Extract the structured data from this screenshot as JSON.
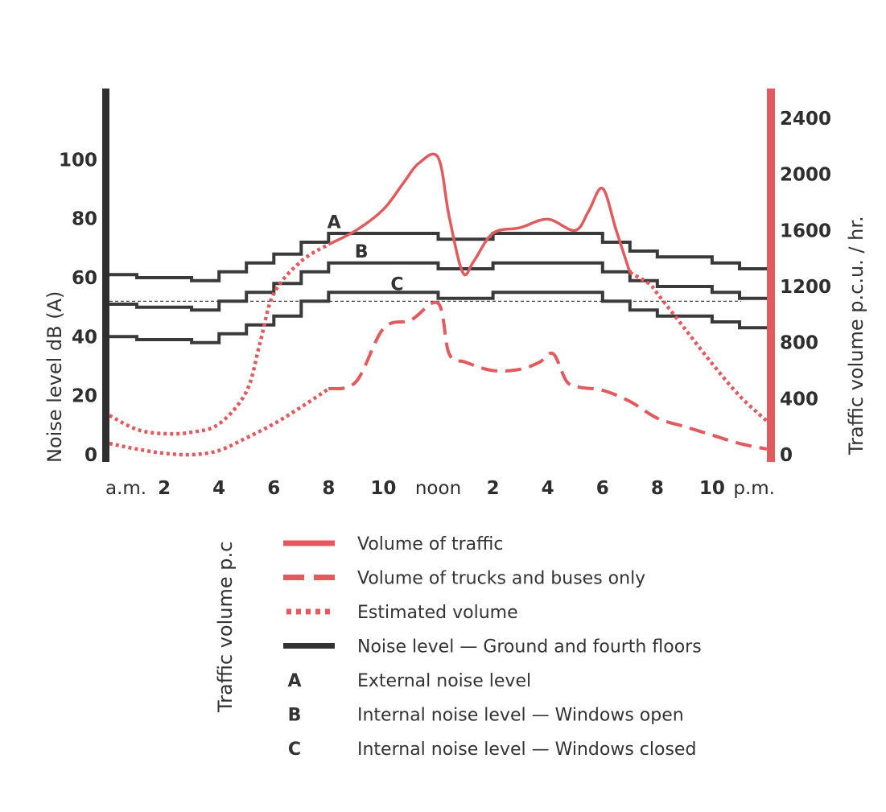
{
  "chart_data": {
    "type": "line",
    "left_axis": {
      "label": "Noise level dB (A)",
      "range": [
        0,
        120
      ],
      "ticks": [
        0,
        20,
        40,
        60,
        80,
        100
      ]
    },
    "right_axis": {
      "label": "Traffic volume p.c.u. / hr.",
      "range": [
        0,
        2400
      ],
      "ticks": [
        0,
        400,
        800,
        1200,
        1600,
        2000,
        2400
      ],
      "color": "#e05a5e"
    },
    "x_axis": {
      "range_hours": [
        0,
        24
      ],
      "ticks": [
        {
          "hour": 0,
          "text": "a.m."
        },
        {
          "hour": 2,
          "label": "2"
        },
        {
          "hour": 4,
          "label": "4"
        },
        {
          "hour": 6,
          "label": "6"
        },
        {
          "hour": 8,
          "label": "8"
        },
        {
          "hour": 10,
          "label": "10"
        },
        {
          "hour": 12,
          "text": "noon"
        },
        {
          "hour": 14,
          "label": "2"
        },
        {
          "hour": 16,
          "label": "4"
        },
        {
          "hour": 18,
          "label": "6"
        },
        {
          "hour": 20,
          "label": "8"
        },
        {
          "hour": 22,
          "label": "10"
        },
        {
          "hour": 24,
          "text": "p.m."
        }
      ]
    },
    "series": [
      {
        "name": "Volume of traffic",
        "axis": "right",
        "style": "solid",
        "color": "#e05a5e",
        "points": [
          [
            8,
            1500
          ],
          [
            9,
            1600
          ],
          [
            10,
            1750
          ],
          [
            10.7,
            1930
          ],
          [
            11.3,
            2080
          ],
          [
            12,
            2120
          ],
          [
            12.4,
            1700
          ],
          [
            12.9,
            1300
          ],
          [
            13.3,
            1380
          ],
          [
            14,
            1580
          ],
          [
            15,
            1620
          ],
          [
            16,
            1680
          ],
          [
            17,
            1600
          ],
          [
            17.5,
            1740
          ],
          [
            18,
            1900
          ],
          [
            18.5,
            1600
          ],
          [
            19,
            1300
          ]
        ]
      },
      {
        "name": "Volume of trucks and buses only",
        "axis": "right",
        "style": "dashed",
        "color": "#e05a5e",
        "points": [
          [
            8,
            470
          ],
          [
            9,
            520
          ],
          [
            10,
            900
          ],
          [
            11,
            960
          ],
          [
            12,
            1080
          ],
          [
            12.4,
            720
          ],
          [
            13,
            660
          ],
          [
            14,
            600
          ],
          [
            15,
            610
          ],
          [
            15.7,
            660
          ],
          [
            16.2,
            720
          ],
          [
            16.7,
            520
          ],
          [
            17.2,
            480
          ],
          [
            18,
            460
          ],
          [
            19,
            380
          ],
          [
            20,
            260
          ],
          [
            21,
            200
          ],
          [
            22,
            140
          ],
          [
            23,
            80
          ],
          [
            24,
            40
          ]
        ]
      },
      {
        "name": "Estimated volume",
        "axis": "right",
        "style": "dotted",
        "color": "#e05a5e",
        "points": [
          [
            0,
            280
          ],
          [
            1,
            180
          ],
          [
            2,
            150
          ],
          [
            3,
            160
          ],
          [
            4,
            220
          ],
          [
            5,
            450
          ],
          [
            5.5,
            800
          ],
          [
            6,
            1150
          ],
          [
            7,
            1380
          ],
          [
            8,
            1500
          ]
        ]
      },
      {
        "name": "Estimated volume",
        "axis": "right",
        "style": "dotted",
        "color": "#e05a5e",
        "points": [
          [
            0,
            80
          ],
          [
            1,
            40
          ],
          [
            2,
            10
          ],
          [
            3,
            0
          ],
          [
            4,
            30
          ],
          [
            5,
            120
          ],
          [
            6,
            220
          ],
          [
            7,
            340
          ],
          [
            8,
            470
          ]
        ]
      },
      {
        "name": "Estimated volume",
        "axis": "right",
        "style": "dotted",
        "color": "#e05a5e",
        "points": [
          [
            19,
            1300
          ],
          [
            19.7,
            1220
          ],
          [
            20,
            1150
          ],
          [
            21,
            900
          ],
          [
            22,
            650
          ],
          [
            23,
            420
          ],
          [
            24,
            240
          ]
        ]
      },
      {
        "name": "A",
        "axis": "left",
        "style": "step",
        "color": "#3a3a3a",
        "steps": [
          [
            0,
            61
          ],
          [
            1,
            60
          ],
          [
            3,
            59
          ],
          [
            4,
            62
          ],
          [
            5,
            65
          ],
          [
            6,
            68
          ],
          [
            7,
            72
          ],
          [
            8,
            75
          ],
          [
            12,
            73
          ],
          [
            14,
            75
          ],
          [
            18,
            72
          ],
          [
            19,
            69
          ],
          [
            20,
            67
          ],
          [
            22,
            65
          ],
          [
            23,
            63
          ],
          [
            24,
            63
          ]
        ]
      },
      {
        "name": "B",
        "axis": "left",
        "style": "step",
        "color": "#3a3a3a",
        "steps": [
          [
            0,
            51
          ],
          [
            1,
            50
          ],
          [
            3,
            49
          ],
          [
            4,
            52
          ],
          [
            5,
            55
          ],
          [
            6,
            58
          ],
          [
            7,
            62
          ],
          [
            8,
            65
          ],
          [
            12,
            63
          ],
          [
            14,
            65
          ],
          [
            18,
            62
          ],
          [
            19,
            59
          ],
          [
            20,
            57
          ],
          [
            22,
            55
          ],
          [
            23,
            53
          ],
          [
            24,
            53
          ]
        ]
      },
      {
        "name": "C",
        "axis": "left",
        "style": "step",
        "color": "#3a3a3a",
        "steps": [
          [
            0,
            40
          ],
          [
            1,
            39
          ],
          [
            3,
            38
          ],
          [
            4,
            41
          ],
          [
            5,
            44
          ],
          [
            6,
            47
          ],
          [
            7,
            52
          ],
          [
            8,
            55
          ],
          [
            12,
            53
          ],
          [
            14,
            55
          ],
          [
            18,
            52
          ],
          [
            19,
            49
          ],
          [
            20,
            47
          ],
          [
            22,
            45
          ],
          [
            23,
            43
          ],
          [
            24,
            43
          ]
        ]
      }
    ],
    "reference_line": {
      "axis": "left",
      "value": 52,
      "style": "thin-dashed"
    },
    "annotations": [
      {
        "text": "A",
        "hour": 8.2,
        "value": 79
      },
      {
        "text": "B",
        "hour": 9.2,
        "value": 69
      },
      {
        "text": "C",
        "hour": 10.5,
        "value": 58
      }
    ],
    "legend": [
      {
        "swatch": "solid",
        "text": "Volume of traffic"
      },
      {
        "swatch": "dashed",
        "text": "Volume of trucks and buses only"
      },
      {
        "swatch": "dotted",
        "text": "Estimated volume"
      },
      {
        "swatch": "black",
        "text": "Noise level — Ground and fourth floors"
      },
      {
        "key": "A",
        "text": "External noise level"
      },
      {
        "key": "B",
        "text": "Internal noise level — Windows open"
      },
      {
        "key": "C",
        "text": "Internal noise level — Windows closed"
      }
    ],
    "legend_side_label": "Traffic volume p.c"
  }
}
